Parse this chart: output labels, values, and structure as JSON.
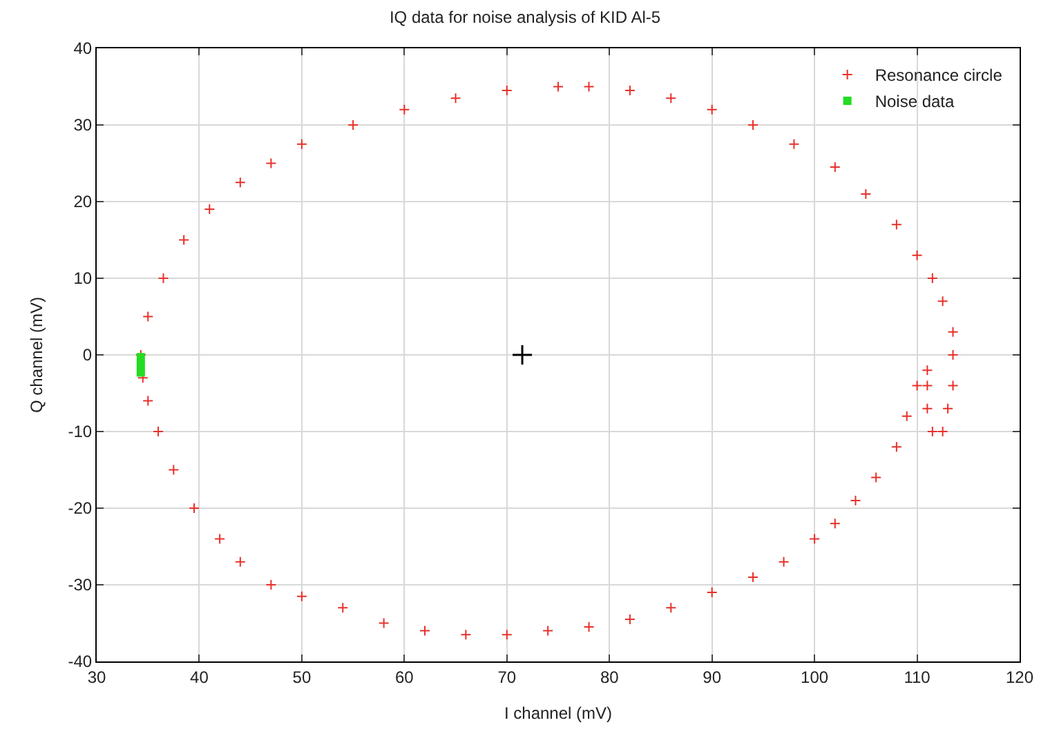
{
  "chart_data": {
    "type": "scatter",
    "title": "IQ data for noise analysis of KID Al-5",
    "xlabel": "I channel (mV)",
    "ylabel": "Q channel (mV)",
    "xlim": [
      30,
      120
    ],
    "xticks": [
      30,
      40,
      50,
      60,
      70,
      80,
      90,
      100,
      110,
      120
    ],
    "ylim": [
      -40,
      40
    ],
    "yticks": [
      -40,
      -30,
      -20,
      -10,
      0,
      10,
      20,
      30,
      40
    ],
    "grid": true,
    "legend": "top right",
    "marker": "cross",
    "series": [
      {
        "name": "Resonance circle",
        "color": "#e8302a",
        "x": [
          34.3,
          35,
          36.5,
          38.5,
          41,
          44,
          47,
          50,
          55,
          60,
          65,
          70,
          75,
          78,
          82,
          86,
          90,
          94,
          98,
          102,
          105,
          108,
          110,
          111.5,
          112.5,
          113.5,
          113.5,
          113.5,
          113,
          112.5,
          111.5,
          111,
          111,
          111,
          110,
          109,
          108,
          106,
          104,
          102,
          100,
          97,
          94,
          90,
          86,
          82,
          78,
          74,
          70,
          66,
          62,
          58,
          54,
          50,
          47,
          44,
          42,
          39.5,
          37.5,
          36,
          35,
          34.5
        ],
        "values": [
          0,
          5,
          10,
          15,
          19,
          22.5,
          25,
          27.5,
          30,
          32,
          33.5,
          34.5,
          35,
          35,
          34.5,
          33.5,
          32,
          30,
          27.5,
          24.5,
          21,
          17,
          13,
          10,
          7,
          3,
          0,
          -4,
          -7,
          -10,
          -10,
          -7,
          -4,
          -2,
          -4,
          -8,
          -12,
          -16,
          -19,
          -22,
          -24,
          -27,
          -29,
          -31,
          -33,
          -34.5,
          -35.5,
          -36,
          -36.5,
          -36.5,
          -36,
          -35,
          -33,
          -31.5,
          -30,
          -27,
          -24,
          -20,
          -15,
          -10,
          -6,
          -3
        ]
      },
      {
        "name": "Noise data",
        "color": "#22dd22",
        "marker": "square",
        "x": [
          34.3,
          34.3,
          34.3
        ],
        "values": [
          -0.3,
          -1.3,
          -2.3
        ]
      },
      {
        "color": "#000000",
        "x": [
          71.5
        ],
        "values": [
          0
        ]
      }
    ]
  }
}
